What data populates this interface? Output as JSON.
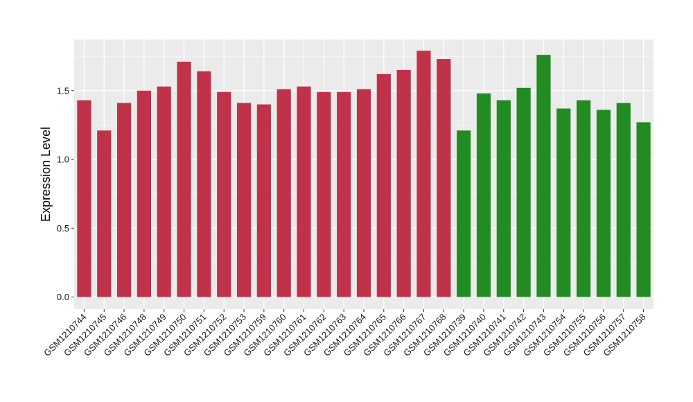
{
  "chart_data": {
    "type": "bar",
    "xlabel": "",
    "ylabel": "Expression Level",
    "ylim": [
      0,
      1.85
    ],
    "yticks": [
      0.0,
      0.5,
      1.0,
      1.5
    ],
    "ytick_labels": [
      "0.0",
      "0.5",
      "1.0",
      "1.5"
    ],
    "grid": true,
    "legend": "none",
    "categories": [
      "GSM1210744",
      "GSM1210745",
      "GSM1210746",
      "GSM1210748",
      "GSM1210749",
      "GSM1210750",
      "GSM1210751",
      "GSM1210752",
      "GSM1210753",
      "GSM1210759",
      "GSM1210760",
      "GSM1210761",
      "GSM1210762",
      "GSM1210763",
      "GSM1210764",
      "GSM1210765",
      "GSM1210766",
      "GSM1210767",
      "GSM1210768",
      "GSM1210739",
      "GSM1210740",
      "GSM1210741",
      "GSM1210742",
      "GSM1210743",
      "GSM1210754",
      "GSM1210755",
      "GSM1210756",
      "GSM1210757",
      "GSM1210758"
    ],
    "values": [
      1.43,
      1.21,
      1.41,
      1.5,
      1.53,
      1.71,
      1.64,
      1.49,
      1.41,
      1.4,
      1.51,
      1.53,
      1.49,
      1.49,
      1.51,
      1.62,
      1.65,
      1.79,
      1.73,
      1.21,
      1.48,
      1.43,
      1.52,
      1.76,
      1.37,
      1.43,
      1.36,
      1.41,
      1.27
    ],
    "groups": [
      0,
      0,
      0,
      0,
      0,
      0,
      0,
      0,
      0,
      0,
      0,
      0,
      0,
      0,
      0,
      0,
      0,
      0,
      0,
      1,
      1,
      1,
      1,
      1,
      1,
      1,
      1,
      1,
      1
    ],
    "group_colors": [
      "#c0314a",
      "#228b22"
    ],
    "panel_background": "#ebebeb",
    "gridline_color": "#ffffff"
  }
}
